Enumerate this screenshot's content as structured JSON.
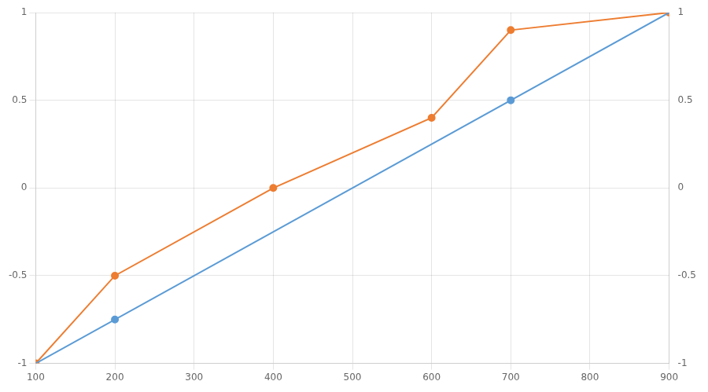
{
  "chart_data": {
    "type": "line",
    "series": [
      {
        "type": "line",
        "color": "#5B9BD5",
        "x": [
          100,
          900
        ],
        "values": [
          -1,
          1
        ],
        "marker": "none",
        "line_style": "solid"
      },
      {
        "type": "scatter",
        "color": "#5B9BD5",
        "x": [
          200,
          700
        ],
        "values": [
          -0.75,
          0.5
        ],
        "marker": "circle",
        "line_style": "none"
      },
      {
        "type": "line",
        "color": "#ED7D31",
        "x": [
          100,
          200,
          400,
          600,
          700,
          900
        ],
        "values": [
          -1,
          -0.5,
          0,
          0.4,
          0.9,
          1
        ],
        "marker": "circle",
        "line_style": "solid"
      }
    ],
    "xlim": [
      100,
      900
    ],
    "xticks": [
      100,
      200,
      300,
      400,
      500,
      600,
      700,
      800,
      900
    ],
    "ylim": [
      -1,
      1
    ],
    "yticks": [
      -1,
      -0.5,
      0,
      0.5,
      1
    ],
    "y2lim": [
      -1,
      1
    ],
    "y2ticks": [
      -1,
      -0.5,
      0,
      0.5,
      1
    ],
    "grid": true
  }
}
